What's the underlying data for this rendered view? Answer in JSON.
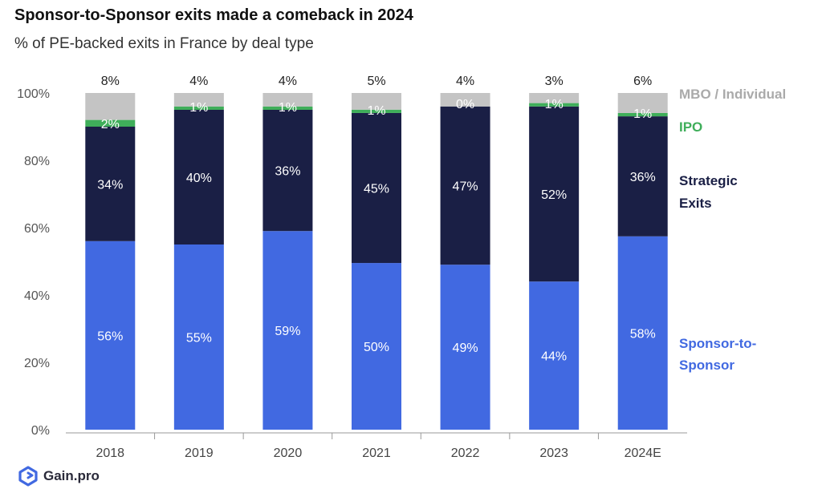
{
  "title": "Sponsor-to-Sponsor exits made a comeback in 2024",
  "subtitle": "% of PE-backed exits in France by deal type",
  "brand": {
    "name": "Gain.pro",
    "icon": "gain-pro-logo-icon",
    "color": "#4169e1"
  },
  "chart_data": {
    "type": "bar",
    "stacked": true,
    "categories": [
      "2018",
      "2019",
      "2020",
      "2021",
      "2022",
      "2023",
      "2024E"
    ],
    "ylim": [
      0,
      100
    ],
    "yticks": [
      0,
      20,
      40,
      60,
      80,
      100
    ],
    "ytick_labels": [
      "0%",
      "20%",
      "40%",
      "60%",
      "80%",
      "100%"
    ],
    "grid": false,
    "legend_placement": "right",
    "series": [
      {
        "name": "Sponsor-to-Sponsor",
        "legend_lines": [
          "Sponsor-to-",
          "Sponsor"
        ],
        "color": "#4169e1",
        "label_color": "#ffffff",
        "values": [
          56,
          55,
          59,
          50,
          49,
          44,
          58
        ],
        "labels": [
          "56%",
          "55%",
          "59%",
          "50%",
          "49%",
          "44%",
          "58%"
        ]
      },
      {
        "name": "Strategic Exits",
        "legend_lines": [
          "Strategic",
          "Exits"
        ],
        "color": "#1a1f45",
        "label_color": "#ffffff",
        "values": [
          34,
          40,
          36,
          45,
          47,
          52,
          36
        ],
        "labels": [
          "34%",
          "40%",
          "36%",
          "45%",
          "47%",
          "52%",
          "36%"
        ]
      },
      {
        "name": "IPO",
        "legend_lines": [
          "IPO"
        ],
        "color": "#3fae5a",
        "label_color": "#ffffff",
        "values": [
          2,
          1,
          1,
          1,
          0,
          1,
          1
        ],
        "labels": [
          "2%",
          "1%",
          "1%",
          "1%",
          "0%",
          "1%",
          "1%"
        ]
      },
      {
        "name": "MBO / Individual",
        "legend_lines": [
          "MBO / Individual"
        ],
        "color": "#c4c4c4",
        "label_color": "#222222",
        "values": [
          8,
          4,
          4,
          5,
          4,
          3,
          6
        ],
        "labels": [
          "8%",
          "4%",
          "4%",
          "5%",
          "4%",
          "3%",
          "6%"
        ]
      }
    ]
  }
}
